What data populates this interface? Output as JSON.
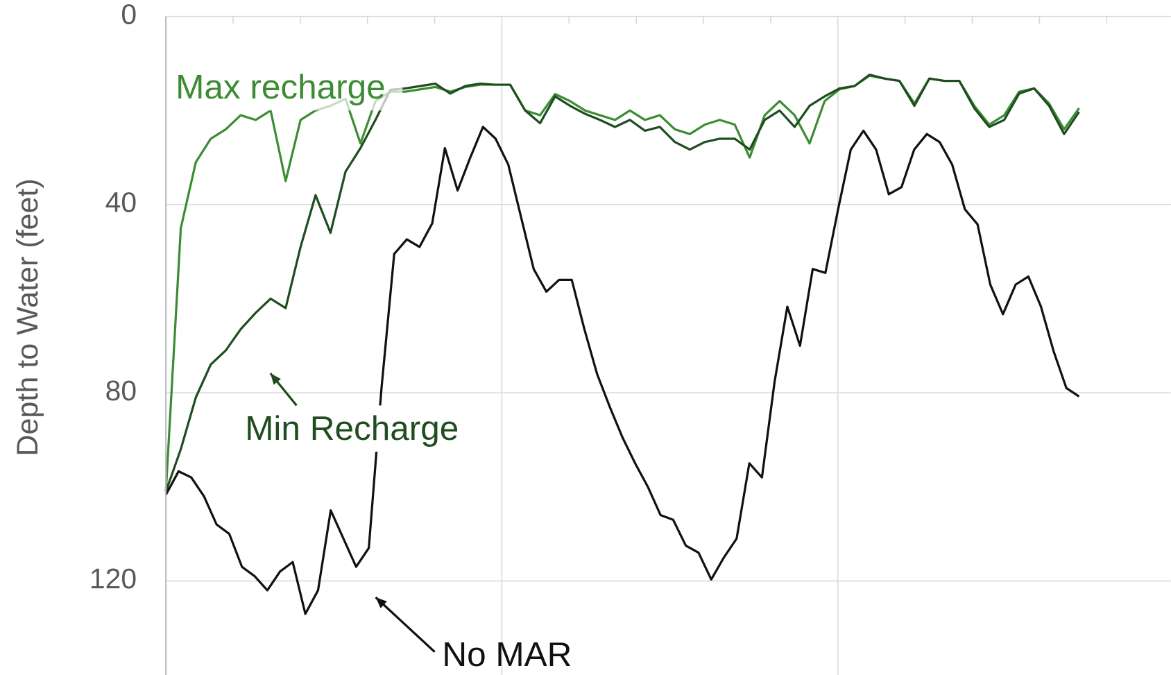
{
  "chart_data": {
    "type": "line",
    "y_label": "Depth to Water (feet)",
    "ylim": [
      0,
      140
    ],
    "yticks": [
      0,
      40,
      80,
      120
    ],
    "y_inverted": true,
    "grid": true,
    "series": [
      {
        "name": "No MAR",
        "color": "#111111",
        "values": [
          101.7,
          96.7,
          98,
          102,
          108,
          110,
          117,
          119,
          122,
          118,
          116,
          127,
          122,
          105,
          111,
          117,
          113,
          79,
          50.5,
          47.4,
          49,
          44,
          28,
          37,
          30,
          23.5,
          26,
          31.5,
          42.6,
          53.7,
          58.5,
          56,
          56,
          66.5,
          76,
          83,
          89.5,
          95,
          100,
          106,
          107,
          112.5,
          114,
          119.7,
          115,
          111,
          95,
          98,
          77.6,
          61.7,
          70,
          53.7,
          54.5,
          41,
          28.3,
          24.3,
          28.3,
          37.8,
          36.3,
          28.3,
          25,
          26.7,
          31.5,
          41,
          44.2,
          57,
          63.3,
          57,
          55.3,
          61.7,
          71.2,
          79,
          80.8
        ]
      },
      {
        "name": "Min Recharge",
        "color": "#1f4d1f",
        "values": [
          101,
          92,
          81,
          74,
          71,
          66.5,
          63,
          60,
          62,
          49,
          38,
          46,
          33,
          28,
          22,
          15.6,
          15.3,
          14.8,
          14.3,
          16.4,
          14.8,
          14.3,
          14.5,
          14.5,
          20,
          22.7,
          17,
          19,
          20.7,
          22,
          23.5,
          22,
          24.3,
          23.5,
          26.7,
          28.3,
          26.7,
          26,
          26,
          28.3,
          22,
          20,
          23.5,
          19,
          17,
          15.3,
          14.8,
          12.4,
          13.2,
          13.7,
          19,
          13.2,
          13.7,
          13.7,
          19.5,
          23.5,
          22,
          16.4,
          15.3,
          19,
          25,
          20.3
        ]
      },
      {
        "name": "Max recharge",
        "color": "#3c8c34",
        "values": [
          101,
          45,
          31,
          26,
          24,
          21,
          22,
          20,
          35,
          22,
          20,
          19,
          17.5,
          27,
          18,
          16,
          16,
          15.5,
          15,
          16,
          15,
          14.5,
          14.5,
          14.5,
          20,
          21,
          16.5,
          18,
          20,
          21,
          22,
          20,
          22,
          21,
          24,
          25,
          23,
          22,
          23,
          30,
          21,
          18,
          21,
          27,
          18,
          15.5,
          14.8,
          12.6,
          13.2,
          13.7,
          18.5,
          13.2,
          13.7,
          13.7,
          19,
          23,
          21,
          16,
          15.3,
          18.5,
          24,
          19.5
        ]
      }
    ]
  }
}
